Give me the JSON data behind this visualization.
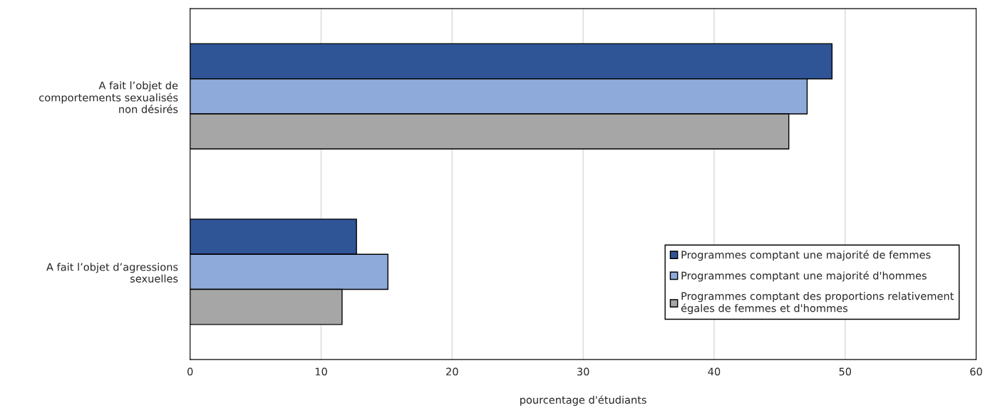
{
  "chart_data": {
    "type": "bar",
    "orientation": "horizontal",
    "xlabel": "pourcentage d'étudiants",
    "categories": [
      "A fait l’objet de\ncomportements sexualisés\nnon désirés",
      "A fait l’objet d’agressions\nsexuelles"
    ],
    "series": [
      {
        "name": "Programmes comptant une majorité de femmes",
        "color": "#2f5597",
        "values": [
          49.0,
          12.7
        ]
      },
      {
        "name": "Programmes comptant une majorité d'hommes",
        "color": "#8eaadb",
        "values": [
          47.1,
          15.1
        ]
      },
      {
        "name": "Programmes comptant des proportions relativement\négales de femmes et d'hommes",
        "color": "#a6a6a6",
        "values": [
          45.7,
          11.6
        ]
      }
    ],
    "xlim": [
      0,
      60
    ],
    "xticks": [
      0,
      10,
      20,
      30,
      40,
      50,
      60
    ],
    "grid": "x",
    "legend": "bottom right"
  }
}
